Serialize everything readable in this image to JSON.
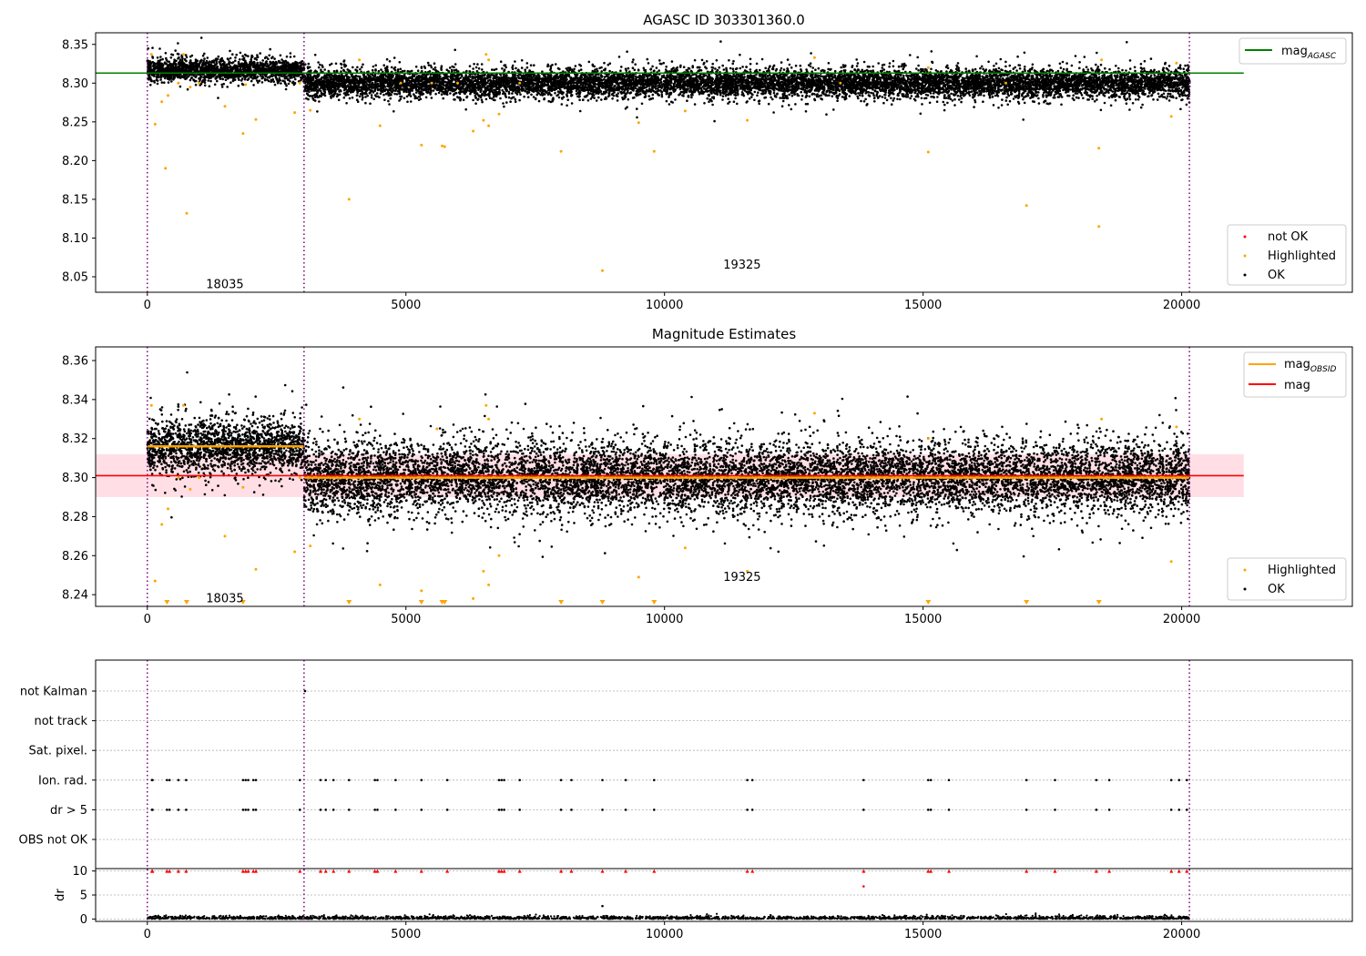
{
  "figure": {
    "background": "#ffffff"
  },
  "chart_data": [
    {
      "id": "p1",
      "type": "scatter",
      "title": "AGASC ID 303301360.0",
      "xlim": [
        -1000,
        23300
      ],
      "ylim": [
        8.03,
        8.365
      ],
      "xticks": [
        0,
        5000,
        10000,
        15000,
        20000
      ],
      "xtick_labels": [
        "0",
        "5000",
        "10000",
        "15000",
        "20000"
      ],
      "yticks": [
        8.05,
        8.1,
        8.15,
        8.2,
        8.25,
        8.3,
        8.35
      ],
      "ytick_labels": [
        "8.05",
        "8.10",
        "8.15",
        "8.20",
        "8.25",
        "8.30",
        "8.35"
      ],
      "vlines": [
        0,
        3030,
        20150
      ],
      "obsid_labels": [
        {
          "x": 1500,
          "y": 8.04,
          "text": "18035"
        },
        {
          "x": 11500,
          "y": 8.065,
          "text": "19325"
        }
      ],
      "hlines": [
        {
          "name": "mag_AGASC",
          "y": 8.313,
          "x": [
            -1000,
            21200
          ],
          "color": "#008000"
        }
      ],
      "segments": [
        {
          "x": [
            0,
            3030
          ],
          "center": 8.317,
          "spread": 0.007,
          "tail": 0.1
        },
        {
          "x": [
            3030,
            20150
          ],
          "center": 8.3,
          "spread": 0.009,
          "tail": 0.1
        }
      ],
      "highlighted": [
        [
          80,
          8.337
        ],
        [
          150,
          8.247
        ],
        [
          280,
          8.276
        ],
        [
          350,
          8.19
        ],
        [
          400,
          8.284
        ],
        [
          600,
          8.3
        ],
        [
          700,
          8.337
        ],
        [
          760,
          8.132
        ],
        [
          830,
          8.295
        ],
        [
          1000,
          8.3
        ],
        [
          1500,
          8.27
        ],
        [
          1850,
          8.235
        ],
        [
          1900,
          8.298
        ],
        [
          2100,
          8.253
        ],
        [
          2850,
          8.262
        ],
        [
          2950,
          8.3
        ],
        [
          3150,
          8.265
        ],
        [
          3900,
          8.15
        ],
        [
          4100,
          8.33
        ],
        [
          4500,
          8.245
        ],
        [
          4900,
          8.3
        ],
        [
          5300,
          8.22
        ],
        [
          5500,
          8.3
        ],
        [
          5700,
          8.219
        ],
        [
          5750,
          8.218
        ],
        [
          6000,
          8.3
        ],
        [
          6300,
          8.238
        ],
        [
          6500,
          8.252
        ],
        [
          6600,
          8.245
        ],
        [
          6550,
          8.337
        ],
        [
          6600,
          8.33
        ],
        [
          6800,
          8.26
        ],
        [
          7200,
          8.3
        ],
        [
          8000,
          8.212
        ],
        [
          8800,
          8.058
        ],
        [
          9500,
          8.249
        ],
        [
          9800,
          8.212
        ],
        [
          10400,
          8.264
        ],
        [
          11600,
          8.252
        ],
        [
          12900,
          8.333
        ],
        [
          13400,
          8.3
        ],
        [
          15100,
          8.211
        ],
        [
          15100,
          8.32
        ],
        [
          16600,
          8.3
        ],
        [
          17000,
          8.142
        ],
        [
          18400,
          8.216
        ],
        [
          18400,
          8.115
        ],
        [
          18450,
          8.33
        ],
        [
          19800,
          8.257
        ],
        [
          19900,
          8.326
        ]
      ],
      "legend_top": [
        {
          "label": "mag",
          "sub": "AGASC",
          "color": "#008000"
        }
      ],
      "legend_bottom": [
        {
          "label": "not OK",
          "color": "#ff0000"
        },
        {
          "label": "Highlighted",
          "color": "#ffa500"
        },
        {
          "label": "OK",
          "color": "#000000"
        }
      ]
    },
    {
      "id": "p2",
      "type": "scatter",
      "title": "Magnitude Estimates",
      "xlim": [
        -1000,
        23300
      ],
      "ylim": [
        8.234,
        8.367
      ],
      "xticks": [
        0,
        5000,
        10000,
        15000,
        20000
      ],
      "xtick_labels": [
        "0",
        "5000",
        "10000",
        "15000",
        "20000"
      ],
      "yticks": [
        8.24,
        8.26,
        8.28,
        8.3,
        8.32,
        8.34,
        8.36
      ],
      "ytick_labels": [
        "8.24",
        "8.26",
        "8.28",
        "8.30",
        "8.32",
        "8.34",
        "8.36"
      ],
      "vlines": [
        0,
        3030,
        20150
      ],
      "obsid_labels": [
        {
          "x": 1500,
          "y": 8.238,
          "text": "18035"
        },
        {
          "x": 11500,
          "y": 8.249,
          "text": "19325"
        }
      ],
      "band": {
        "y": [
          8.29,
          8.312
        ],
        "x": [
          -1000,
          21200
        ],
        "color": "#ffc0cb"
      },
      "hlines": [
        {
          "name": "mag",
          "y": 8.301,
          "x": [
            -1000,
            21200
          ],
          "color": "#ff0000"
        },
        {
          "name": "mag_OBSID",
          "y": 8.316,
          "x": [
            0,
            3030
          ],
          "color": "#ffa500"
        },
        {
          "name": "mag_OBSID",
          "y": 8.3,
          "x": [
            3030,
            20150
          ],
          "color": "#ffa500"
        }
      ],
      "segments": [
        {
          "x": [
            0,
            3030
          ],
          "center": 8.316,
          "spread": 0.007,
          "tail": 0.1
        },
        {
          "x": [
            3030,
            20150
          ],
          "center": 8.3,
          "spread": 0.009,
          "tail": 0.1
        }
      ],
      "highlighted": [
        [
          80,
          8.337
        ],
        [
          150,
          8.247
        ],
        [
          280,
          8.276
        ],
        [
          400,
          8.284
        ],
        [
          600,
          8.3
        ],
        [
          700,
          8.337
        ],
        [
          830,
          8.294
        ],
        [
          1000,
          8.3
        ],
        [
          1500,
          8.27
        ],
        [
          1850,
          8.295
        ],
        [
          2100,
          8.253
        ],
        [
          2850,
          8.262
        ],
        [
          2950,
          8.3
        ],
        [
          3150,
          8.265
        ],
        [
          4100,
          8.33
        ],
        [
          4500,
          8.245
        ],
        [
          4900,
          8.3
        ],
        [
          5300,
          8.242
        ],
        [
          5500,
          8.3
        ],
        [
          5600,
          8.325
        ],
        [
          6300,
          8.238
        ],
        [
          6500,
          8.252
        ],
        [
          6600,
          8.245
        ],
        [
          6550,
          8.337
        ],
        [
          6600,
          8.33
        ],
        [
          6800,
          8.26
        ],
        [
          7200,
          8.3
        ],
        [
          9500,
          8.249
        ],
        [
          10400,
          8.264
        ],
        [
          11600,
          8.252
        ],
        [
          12900,
          8.333
        ],
        [
          13400,
          8.3
        ],
        [
          15100,
          8.32
        ],
        [
          16600,
          8.3
        ],
        [
          18450,
          8.33
        ],
        [
          19800,
          8.257
        ],
        [
          19900,
          8.326
        ]
      ],
      "offscale": [
        380,
        760,
        1850,
        3900,
        5300,
        5700,
        5750,
        8000,
        8800,
        9800,
        15100,
        17000,
        18400
      ],
      "legend_top": [
        {
          "label": "mag",
          "sub": "OBSID",
          "color": "#ffa500"
        },
        {
          "label": "mag",
          "sub": "",
          "color": "#ff0000"
        }
      ],
      "legend_bottom": [
        {
          "label": "Highlighted",
          "color": "#ffa500"
        },
        {
          "label": "OK",
          "color": "#000000"
        }
      ]
    },
    {
      "id": "p3",
      "type": "scatter",
      "xlim": [
        -1000,
        23300
      ],
      "xticks": [
        0,
        5000,
        10000,
        15000,
        20000
      ],
      "xtick_labels": [
        "0",
        "5000",
        "10000",
        "15000",
        "20000"
      ],
      "vlines": [
        0,
        3030,
        20150
      ],
      "flag_rows": [
        "not Kalman",
        "not track",
        "Sat. pixel.",
        "Ion. rad.",
        "dr > 5",
        "OBS not OK"
      ],
      "flag_x": [
        90,
        100,
        380,
        430,
        600,
        750,
        1850,
        1900,
        1950,
        2050,
        2100,
        2950,
        3350,
        3450,
        3600,
        3900,
        4400,
        4450,
        4800,
        5300,
        5800,
        6800,
        6850,
        6900,
        7200,
        8000,
        8200,
        8800,
        9250,
        9800,
        11600,
        11700,
        13850,
        15100,
        15150,
        15500,
        17000,
        17550,
        18350,
        18600,
        19800,
        19950,
        20100
      ],
      "not_kalman_x": [
        3050
      ],
      "dr_ylabel": "dr",
      "dr_ylim": [
        -0.5,
        10.5
      ],
      "dr_yticks": [
        0,
        5,
        10
      ],
      "dr_ytick_labels": [
        "0",
        "5",
        "10"
      ],
      "dr_outliers": [
        [
          13850,
          6.8
        ],
        [
          8800,
          2.7
        ]
      ]
    }
  ]
}
